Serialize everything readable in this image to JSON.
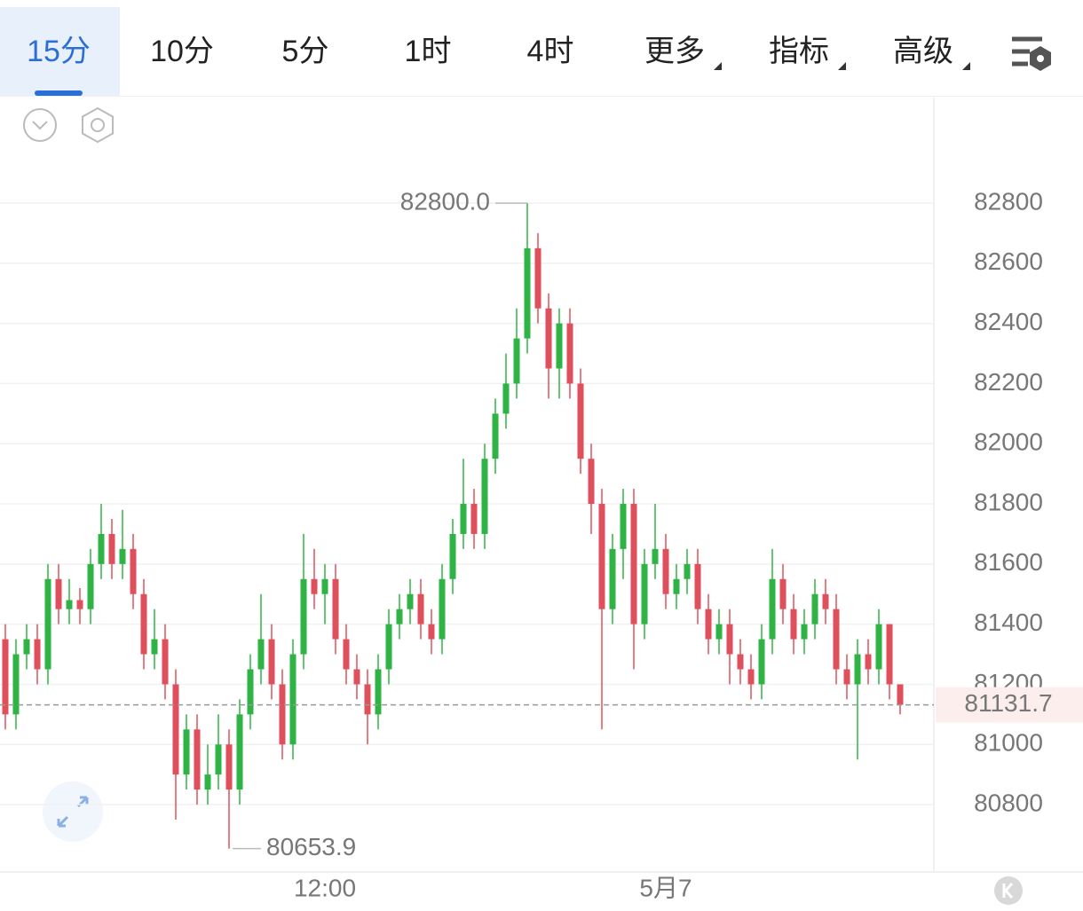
{
  "tabs": [
    "15分",
    "10分",
    "5分",
    "1时",
    "4时",
    "更多",
    "指标",
    "高级"
  ],
  "chart_data": {
    "type": "candlestick",
    "up_color": "#2fb344",
    "down_color": "#e0505c",
    "ylim": [
      80576,
      83151
    ],
    "yticks": [
      80800,
      81000,
      81200,
      81400,
      81600,
      81800,
      82000,
      82200,
      82400,
      82600,
      82800
    ],
    "grid": true,
    "categories": [
      null,
      null,
      null,
      null,
      null,
      null,
      null,
      null,
      null,
      null,
      null,
      null,
      null,
      null,
      null,
      null,
      null,
      null,
      null,
      null,
      null,
      null,
      null,
      null,
      null,
      null,
      null,
      null,
      null,
      null,
      "12:00",
      null,
      null,
      null,
      null,
      null,
      null,
      null,
      null,
      null,
      null,
      null,
      null,
      null,
      null,
      null,
      null,
      null,
      null,
      null,
      null,
      null,
      null,
      null,
      null,
      null,
      null,
      null,
      null,
      null,
      null,
      null,
      "5月7",
      null,
      null,
      null,
      null,
      null,
      null,
      null,
      null,
      null,
      null,
      null,
      null,
      null,
      null,
      null,
      null,
      null,
      null,
      null,
      null,
      null,
      null
    ],
    "open": [
      81350,
      81100,
      81300,
      81350,
      81250,
      81550,
      81450,
      81480,
      81450,
      81600,
      81700,
      81600,
      81650,
      81500,
      81300,
      81350,
      81200,
      80900,
      81050,
      80850,
      80900,
      81000,
      80850,
      81100,
      81250,
      81350,
      81200,
      81000,
      81300,
      81550,
      81500,
      81550,
      81350,
      81250,
      81200,
      81100,
      81250,
      81400,
      81450,
      81500,
      81400,
      81350,
      81550,
      81700,
      81800,
      81700,
      81950,
      82100,
      82200,
      82350,
      82650,
      82450,
      82250,
      82400,
      82200,
      81950,
      81800,
      81450,
      81650,
      81800,
      81400,
      81600,
      81650,
      81500,
      81550,
      81600,
      81450,
      81350,
      81400,
      81300,
      81250,
      81200,
      81350,
      81550,
      81450,
      81350,
      81400,
      81500,
      81450,
      81250,
      81200,
      81300,
      81250,
      81400,
      81200
    ],
    "high": [
      81400,
      81350,
      81400,
      81400,
      81600,
      81600,
      81550,
      81520,
      81650,
      81800,
      81750,
      81780,
      81700,
      81550,
      81450,
      81400,
      81250,
      81100,
      81100,
      81000,
      81100,
      81050,
      81150,
      81300,
      81500,
      81400,
      81250,
      81350,
      81700,
      81650,
      81600,
      81600,
      81400,
      81300,
      81250,
      81300,
      81450,
      81500,
      81550,
      81550,
      81450,
      81600,
      81750,
      81950,
      81850,
      82000,
      82150,
      82300,
      82450,
      82800,
      82700,
      82500,
      82450,
      82450,
      82250,
      82000,
      81850,
      81700,
      81850,
      81850,
      81650,
      81800,
      81700,
      81600,
      81650,
      81650,
      81500,
      81450,
      81450,
      81350,
      81300,
      81400,
      81650,
      81600,
      81500,
      81450,
      81550,
      81550,
      81500,
      81300,
      81350,
      81350,
      81450,
      81400,
      81200
    ],
    "low": [
      81050,
      81050,
      81250,
      81200,
      81200,
      81400,
      81400,
      81400,
      81400,
      81550,
      81550,
      81550,
      81450,
      81250,
      81250,
      81150,
      80750,
      80850,
      80800,
      80800,
      80850,
      80653.9,
      80800,
      81050,
      81200,
      81150,
      80950,
      80950,
      81250,
      81450,
      81400,
      81300,
      81200,
      81150,
      81000,
      81050,
      81200,
      81350,
      81400,
      81350,
      81300,
      81300,
      81500,
      81650,
      81650,
      81650,
      81900,
      82050,
      82150,
      82300,
      82400,
      82150,
      82150,
      82150,
      81900,
      81700,
      81050,
      81400,
      81550,
      81250,
      81350,
      81550,
      81450,
      81450,
      81500,
      81400,
      81300,
      81300,
      81200,
      81200,
      81150,
      81150,
      81300,
      81400,
      81300,
      81300,
      81350,
      81400,
      81200,
      81150,
      80950,
      81200,
      81200,
      81150,
      81100
    ],
    "close": [
      81100,
      81300,
      81350,
      81250,
      81550,
      81450,
      81480,
      81450,
      81600,
      81700,
      81600,
      81650,
      81500,
      81300,
      81350,
      81200,
      80900,
      81050,
      80850,
      80900,
      81000,
      80850,
      81100,
      81250,
      81350,
      81200,
      81000,
      81300,
      81550,
      81500,
      81550,
      81350,
      81250,
      81200,
      81100,
      81250,
      81400,
      81450,
      81500,
      81400,
      81350,
      81550,
      81700,
      81800,
      81700,
      81950,
      82100,
      82200,
      82350,
      82650,
      82450,
      82250,
      82400,
      82200,
      81950,
      81800,
      81450,
      81650,
      81800,
      81400,
      81600,
      81650,
      81500,
      81550,
      81600,
      81450,
      81350,
      81400,
      81300,
      81250,
      81200,
      81350,
      81550,
      81450,
      81350,
      81400,
      81500,
      81450,
      81250,
      81200,
      81300,
      81250,
      81400,
      81200,
      81131.7
    ],
    "max_annotation": {
      "value": 82800,
      "label": "82800.0"
    },
    "min_annotation": 80653.9,
    "last_price": 81131.7
  }
}
